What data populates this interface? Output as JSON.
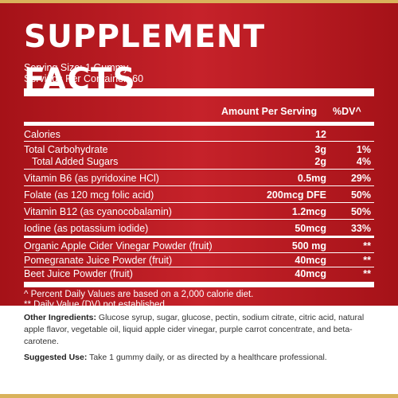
{
  "title": "SUPPLEMENT FACTS",
  "serving_size": "Serving Size: 1 Gummy",
  "servings_per_container": "Servings Per Container: 60",
  "header": {
    "amount": "Amount Per Serving",
    "dv": "%DV^"
  },
  "rows": [
    {
      "name": "Calories",
      "amount": "12",
      "dv": ""
    },
    {
      "name": "Total Carbohydrate",
      "amount": "3g",
      "dv": "1%"
    },
    {
      "name": "Total Added Sugars",
      "amount": "2g",
      "dv": "4%"
    },
    {
      "name": "Vitamin B6 (as pyridoxine HCl)",
      "amount": "0.5mg",
      "dv": "29%"
    },
    {
      "name": "Folate (as 120 mcg folic acid)",
      "amount": "200mcg DFE",
      "dv": "50%"
    },
    {
      "name": "Vitamin B12 (as cyanocobalamin)",
      "amount": "1.2mcg",
      "dv": "50%"
    },
    {
      "name": "Iodine (as potassium iodide)",
      "amount": "50mcg",
      "dv": "33%"
    },
    {
      "name": "Organic Apple Cider Vinegar Powder (fruit)",
      "amount": "500 mg",
      "dv": "**"
    },
    {
      "name": "Pomegranate Juice Powder (fruit)",
      "amount": "40mcg",
      "dv": "**"
    },
    {
      "name": "Beet Juice Powder (fruit)",
      "amount": "40mcg",
      "dv": "**"
    }
  ],
  "footnote1": "^ Percent Daily Values are based on a 2,000 calorie diet.",
  "footnote2": "** Daily Value (DV) not established.",
  "other_label": "Other Ingredients:",
  "other_text": " Glucose syrup, sugar, glucose, pectin, sodium citrate, citric acid, natural apple flavor, vegetable oil, liquid apple cider vinegar, purple carrot concentrate, and beta-carotene.",
  "suggested_label": "Suggested Use:",
  "suggested_text": " Take 1 gummy daily, or as directed by a healthcare professional."
}
